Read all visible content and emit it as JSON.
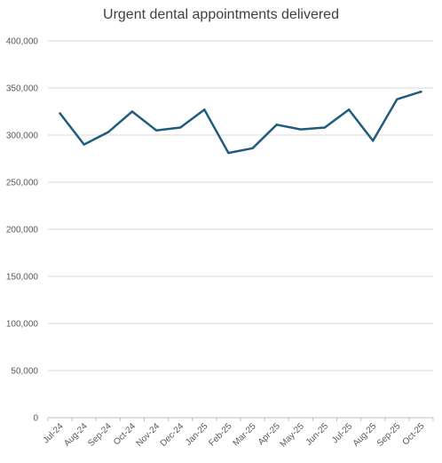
{
  "chart_data": {
    "type": "line",
    "title": "Urgent dental appointments delivered",
    "xlabel": "",
    "ylabel": "",
    "categories": [
      "Jul-24",
      "Aug-24",
      "Sep-24",
      "Oct-24",
      "Nov-24",
      "Dec-24",
      "Jan-25",
      "Feb-25",
      "Mar-25",
      "Apr-25",
      "May-25",
      "Jun-25",
      "Jul-25",
      "Aug-25",
      "Sep-25",
      "Oct-25"
    ],
    "series": [
      {
        "values": [
          323000,
          290000,
          303000,
          325000,
          305000,
          308000,
          327000,
          281000,
          286000,
          311000,
          306000,
          308000,
          327000,
          294000,
          338000,
          346000
        ],
        "color": "#1f5c7d"
      }
    ],
    "ylim": [
      0,
      400000
    ],
    "yticks": [
      0,
      50000,
      100000,
      150000,
      200000,
      250000,
      300000,
      350000,
      400000
    ],
    "ytick_labels": [
      "0",
      "50,000",
      "100,000",
      "150,000",
      "200,000",
      "250,000",
      "300,000",
      "350,000",
      "400,000"
    ],
    "grid": true,
    "legend": "none",
    "gridline_color": "#d9d9d9"
  }
}
